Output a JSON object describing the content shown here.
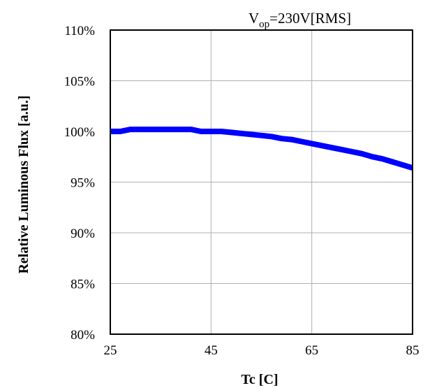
{
  "chart_data": {
    "type": "line",
    "title": "",
    "annotation": {
      "prefix": "V",
      "subscript": "op",
      "suffix": "=230V[RMS]"
    },
    "xlabel": "Tc [C]",
    "ylabel": "Relative Luminous Flux [a.u.]",
    "xlim": [
      25,
      85
    ],
    "ylim": [
      80,
      110
    ],
    "x_ticks": [
      25,
      45,
      65,
      85
    ],
    "x_tick_labels": [
      "25",
      "45",
      "65",
      "85"
    ],
    "y_ticks": [
      80,
      85,
      90,
      95,
      100,
      105,
      110
    ],
    "y_tick_labels": [
      "80%",
      "85%",
      "90%",
      "95%",
      "100%",
      "105%",
      "110%"
    ],
    "grid": true,
    "series": [
      {
        "color": "#0000ff",
        "x": [
          25,
          27,
          29,
          31,
          33,
          35,
          37,
          39,
          41,
          43,
          45,
          47,
          49,
          51,
          53,
          55,
          57,
          59,
          61,
          63,
          65,
          67,
          69,
          71,
          73,
          75,
          77,
          79,
          81,
          83,
          85
        ],
        "y": [
          100.0,
          100.0,
          100.2,
          100.2,
          100.2,
          100.2,
          100.2,
          100.2,
          100.2,
          100.0,
          100.0,
          100.0,
          99.9,
          99.8,
          99.7,
          99.6,
          99.5,
          99.3,
          99.2,
          99.0,
          98.8,
          98.6,
          98.4,
          98.2,
          98.0,
          97.8,
          97.5,
          97.3,
          97.0,
          96.7,
          96.4
        ]
      }
    ]
  }
}
